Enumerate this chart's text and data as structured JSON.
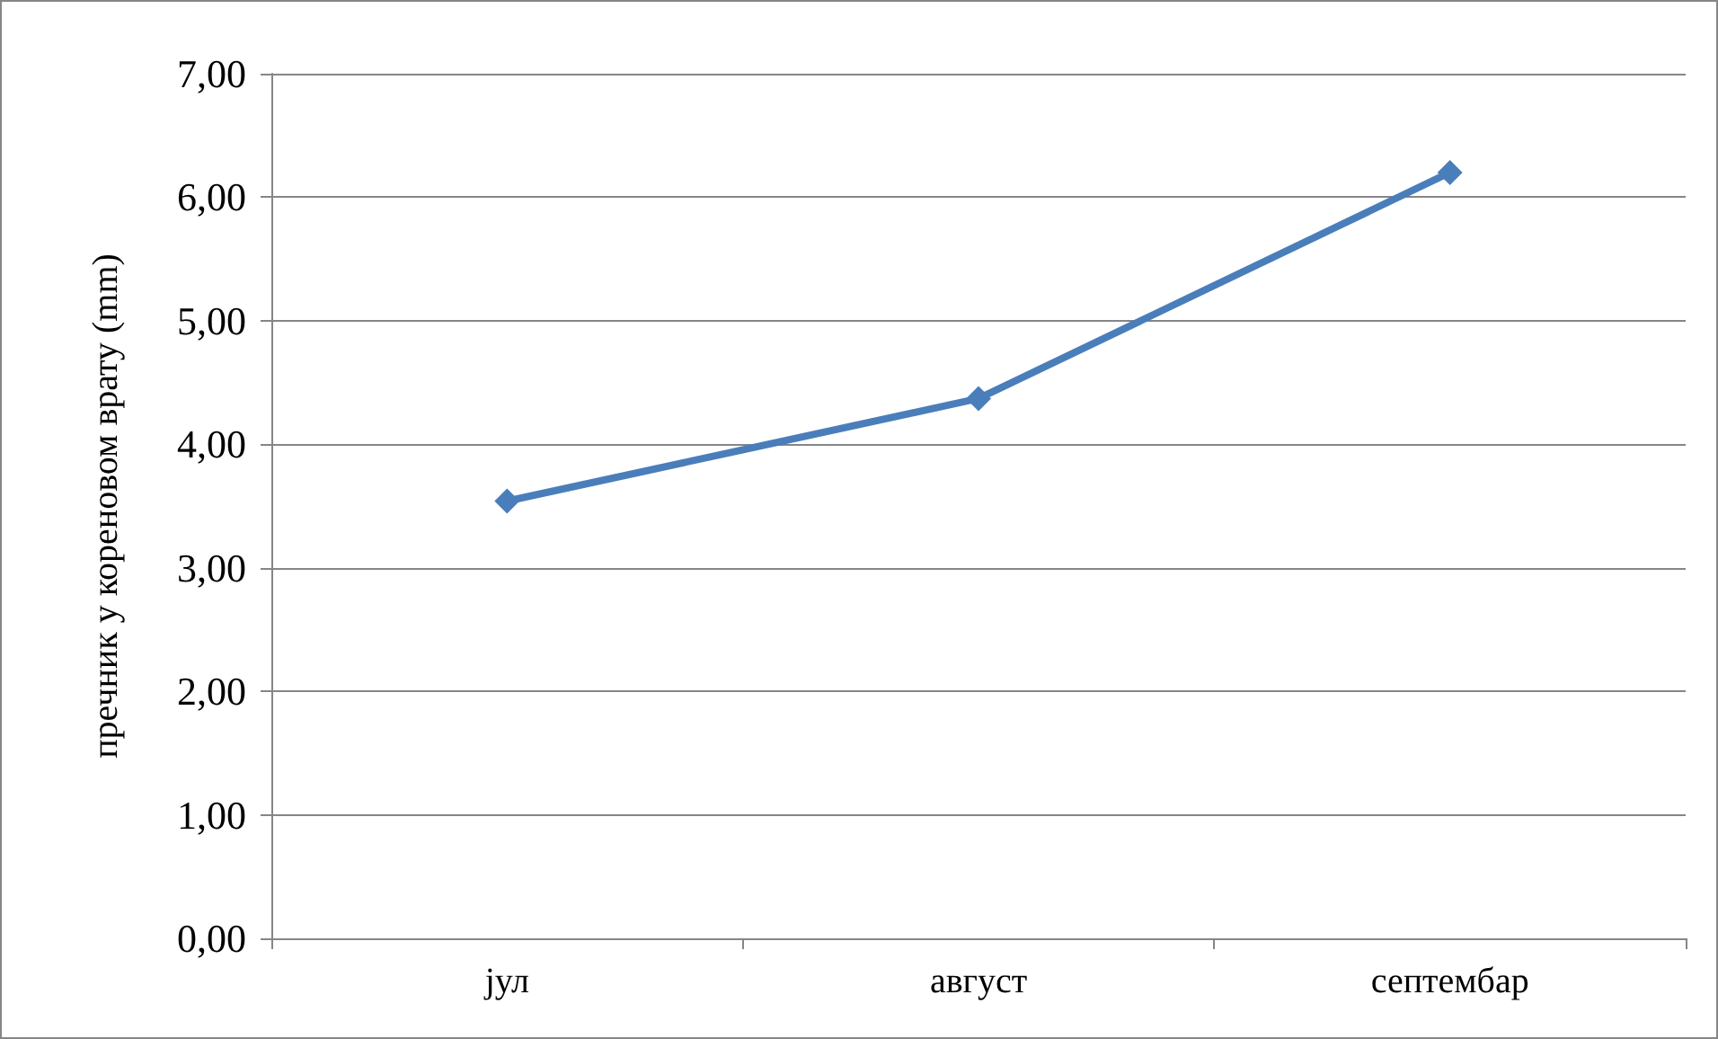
{
  "chart_data": {
    "type": "line",
    "ylabel": "пречник у кореновом врату (mm)",
    "categories": [
      "јул",
      "август",
      "септембар"
    ],
    "series": [
      {
        "color": "#4a7ebb",
        "values": [
          3.54,
          4.37,
          6.2
        ]
      }
    ],
    "ylim": [
      0,
      7
    ],
    "yticks": [
      {
        "value": 0,
        "label": "0,00"
      },
      {
        "value": 1,
        "label": "1,00"
      },
      {
        "value": 2,
        "label": "2,00"
      },
      {
        "value": 3,
        "label": "3,00"
      },
      {
        "value": 4,
        "label": "4,00"
      },
      {
        "value": 5,
        "label": "5,00"
      },
      {
        "value": 6,
        "label": "6,00"
      },
      {
        "value": 7,
        "label": "7,00"
      }
    ],
    "grid": "y",
    "marker": "diamond",
    "line_style": "solid"
  }
}
